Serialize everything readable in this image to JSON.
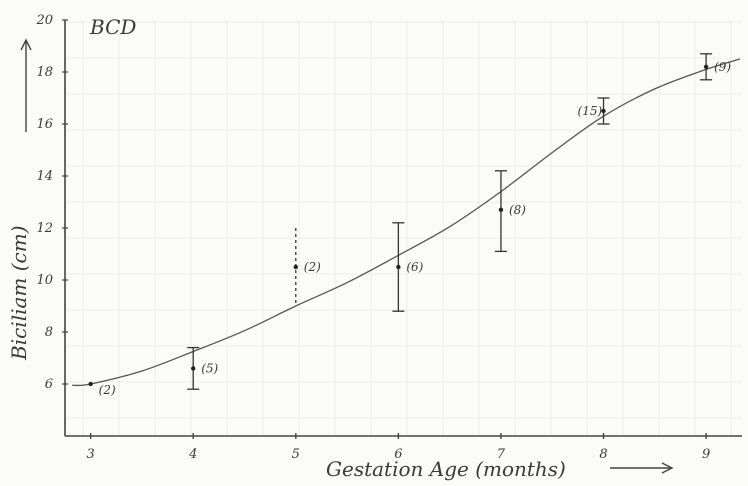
{
  "chart_data": {
    "type": "line",
    "title": "BCD",
    "xlabel": "Gestation Age (months)",
    "ylabel": "Biciliam (cm)",
    "xlim": [
      2.75,
      9.35
    ],
    "ylim": [
      4,
      20
    ],
    "x_ticks": [
      3,
      4,
      5,
      6,
      7,
      8,
      9
    ],
    "y_ticks": [
      6,
      8,
      10,
      12,
      14,
      16,
      18,
      20
    ],
    "y_tick_labels": [
      "6",
      "8",
      "10",
      "12",
      "14",
      "16",
      "18",
      "20"
    ],
    "grid": true,
    "fit_curve": {
      "x": [
        2.82,
        3,
        3.5,
        4,
        4.5,
        5,
        5.5,
        6,
        6.5,
        7,
        7.5,
        8,
        8.5,
        9,
        9.33
      ],
      "y": [
        5.95,
        6.0,
        6.5,
        7.25,
        8.05,
        9.0,
        9.9,
        10.95,
        12.05,
        13.4,
        14.9,
        16.3,
        17.35,
        18.1,
        18.5
      ]
    },
    "series": [
      {
        "x": [
          3,
          4,
          5,
          6,
          7,
          8,
          9
        ],
        "mean": [
          6.0,
          6.6,
          10.5,
          10.5,
          12.7,
          16.5,
          18.2
        ],
        "low": [
          null,
          5.8,
          9.0,
          8.8,
          11.1,
          16.0,
          17.7
        ],
        "high": [
          null,
          7.4,
          12.0,
          12.2,
          14.2,
          17.0,
          18.7
        ],
        "n_labels": [
          "(2)",
          "(5)",
          "(2)",
          "(6)",
          "(8)",
          "(15)",
          "(9)"
        ],
        "dashed": [
          false,
          false,
          true,
          false,
          false,
          false,
          false
        ]
      }
    ]
  }
}
